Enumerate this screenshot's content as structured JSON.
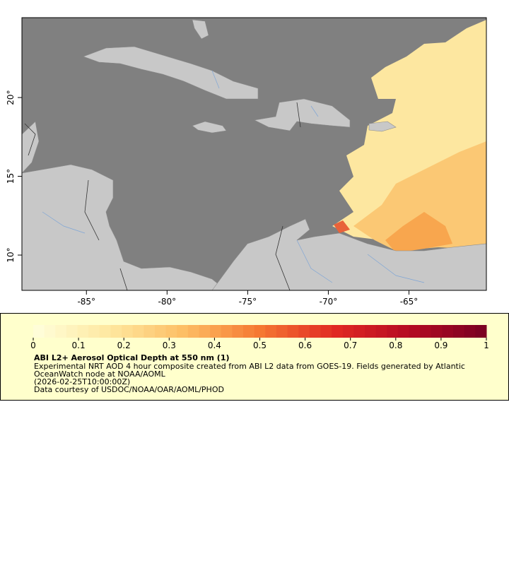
{
  "map": {
    "xlim": [
      -89,
      -60.2
    ],
    "ylim": [
      7.76,
      25.07
    ],
    "xticks": [
      {
        "value": -85,
        "label": "-85°"
      },
      {
        "value": -80,
        "label": "-80°"
      },
      {
        "value": -75,
        "label": "-75°"
      },
      {
        "value": -70,
        "label": "-70°"
      },
      {
        "value": -65,
        "label": "-65°"
      }
    ],
    "yticks": [
      {
        "value": 10,
        "label": "10°"
      },
      {
        "value": 15,
        "label": "15°"
      },
      {
        "value": 20,
        "label": "20°"
      }
    ]
  },
  "colorbar": {
    "range": [
      0,
      1
    ],
    "ticks": [
      0,
      0.1,
      0.2,
      0.3,
      0.4,
      0.5,
      0.6,
      0.7,
      0.8,
      0.9,
      1
    ]
  },
  "legend": {
    "title": "ABI L2+ Aerosol Optical Depth at 550 nm (1)",
    "lines": [
      "Experimental NRT AOD 4 hour composite created from ABI L2 data from GOES-19. Fields generated by Atlantic",
      "OceanWatch node at NOAA/AOML",
      "(2026-02-25T10:00:00Z)",
      "Data courtesy of USDOC/NOAA/OAR/AOML/PHOD"
    ]
  }
}
